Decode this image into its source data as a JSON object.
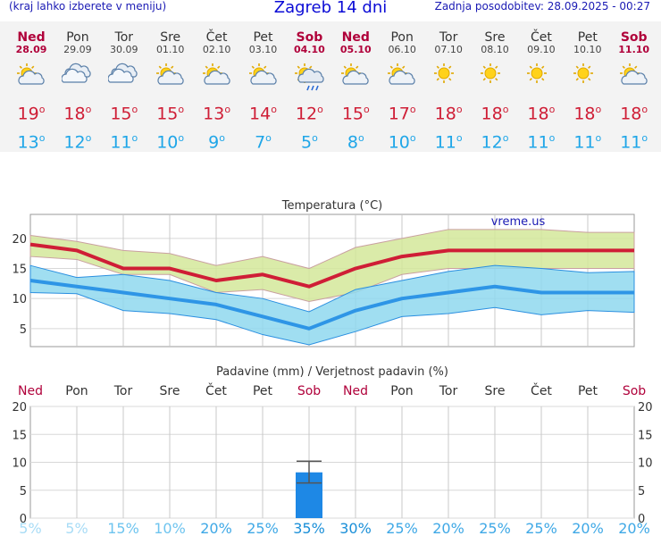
{
  "header": {
    "menu_hint": "(kraj lahko izberete v meniju)",
    "title": "Zagreb 14 dni",
    "updated": "Zadnja posodobitev: 28.09.2025 - 00:27"
  },
  "days": [
    {
      "name": "Ned",
      "date": "28.09",
      "weekend": true,
      "icon": "partly-cloudy-icon",
      "max": "19",
      "min": "13"
    },
    {
      "name": "Pon",
      "date": "29.09",
      "weekend": false,
      "icon": "cloudy-icon",
      "max": "18",
      "min": "12"
    },
    {
      "name": "Tor",
      "date": "30.09",
      "weekend": false,
      "icon": "cloudy-icon",
      "max": "15",
      "min": "11"
    },
    {
      "name": "Sre",
      "date": "01.10",
      "weekend": false,
      "icon": "partly-cloudy-icon",
      "max": "15",
      "min": "10"
    },
    {
      "name": "Čet",
      "date": "02.10",
      "weekend": false,
      "icon": "partly-cloudy-icon",
      "max": "13",
      "min": "9"
    },
    {
      "name": "Pet",
      "date": "03.10",
      "weekend": false,
      "icon": "partly-cloudy-icon",
      "max": "14",
      "min": "7"
    },
    {
      "name": "Sob",
      "date": "04.10",
      "weekend": true,
      "icon": "rain-sun-icon",
      "max": "12",
      "min": "5"
    },
    {
      "name": "Ned",
      "date": "05.10",
      "weekend": true,
      "icon": "partly-cloudy-icon",
      "max": "15",
      "min": "8"
    },
    {
      "name": "Pon",
      "date": "06.10",
      "weekend": false,
      "icon": "partly-cloudy-icon",
      "max": "17",
      "min": "10"
    },
    {
      "name": "Tor",
      "date": "07.10",
      "weekend": false,
      "icon": "sun-icon",
      "max": "18",
      "min": "11"
    },
    {
      "name": "Sre",
      "date": "08.10",
      "weekend": false,
      "icon": "sun-icon",
      "max": "18",
      "min": "12"
    },
    {
      "name": "Čet",
      "date": "09.10",
      "weekend": false,
      "icon": "sun-icon",
      "max": "18",
      "min": "11"
    },
    {
      "name": "Pet",
      "date": "10.10",
      "weekend": false,
      "icon": "sun-icon",
      "max": "18",
      "min": "11"
    },
    {
      "name": "Sob",
      "date": "11.10",
      "weekend": true,
      "icon": "partly-cloudy-icon",
      "max": "18",
      "min": "11"
    }
  ],
  "degree_symbol": "o",
  "colors": {
    "max": "#cf1e36",
    "min": "#1fa6e8",
    "weekend": "#b0003a",
    "max_band": "#d4e89a",
    "min_band": "#8fd8ee",
    "bar": "#1e88e5"
  },
  "chart_data": [
    {
      "type": "line",
      "title": "Temperatura (°C)",
      "watermark": "vreme.us",
      "x": [
        0,
        1,
        2,
        3,
        4,
        5,
        6,
        7,
        8,
        9,
        10,
        11,
        12,
        13
      ],
      "ylim": [
        2,
        24
      ],
      "yticks": [
        5,
        10,
        15,
        20
      ],
      "grid": true,
      "series": [
        {
          "name": "max",
          "values": [
            19,
            18,
            15,
            15,
            13,
            14,
            12,
            15,
            17,
            18,
            18,
            18,
            18,
            18
          ]
        },
        {
          "name": "min",
          "values": [
            13,
            12,
            11,
            10,
            9,
            7,
            5,
            8,
            10,
            11,
            12,
            11,
            11,
            11
          ]
        }
      ],
      "max_band_upper": [
        20.5,
        19.5,
        18,
        17.5,
        15.5,
        17,
        15,
        18.5,
        20,
        21.5,
        21.5,
        21.5,
        21,
        21
      ],
      "max_band_lower": [
        17,
        16.5,
        14,
        14,
        11,
        11.5,
        9.5,
        11,
        14,
        15,
        15,
        15,
        15,
        15
      ],
      "min_band_upper": [
        15.5,
        13.5,
        14,
        13,
        11,
        10,
        7.8,
        11.5,
        13,
        14.5,
        15.5,
        15,
        14.3,
        14.5
      ],
      "min_band_lower": [
        11,
        10.8,
        8,
        7.5,
        6.5,
        4,
        2.3,
        4.5,
        7,
        7.5,
        8.5,
        7.3,
        8,
        7.7
      ]
    },
    {
      "type": "bar",
      "title": "Padavine (mm) / Verjetnost padavin (%)",
      "categories": [
        "Ned",
        "Pon",
        "Tor",
        "Sre",
        "Čet",
        "Pet",
        "Sob",
        "Ned",
        "Pon",
        "Tor",
        "Sre",
        "Čet",
        "Pet",
        "Sob"
      ],
      "weekend": [
        true,
        false,
        false,
        false,
        false,
        false,
        true,
        true,
        false,
        false,
        false,
        false,
        false,
        true
      ],
      "values": [
        0,
        0,
        0,
        0,
        0,
        0,
        8.2,
        0,
        0,
        0,
        0,
        0,
        0,
        0
      ],
      "error_low": [
        0,
        0,
        0,
        0,
        0,
        0,
        6.3,
        0,
        0,
        0,
        0,
        0,
        0,
        0
      ],
      "error_high": [
        0,
        0,
        0,
        0,
        0,
        0,
        10.2,
        0,
        0,
        0,
        0,
        0,
        0,
        0
      ],
      "ylim": [
        0,
        20
      ],
      "yticks": [
        0,
        5,
        10,
        15,
        20
      ],
      "probability": [
        "5%",
        "5%",
        "15%",
        "10%",
        "20%",
        "25%",
        "35%",
        "30%",
        "25%",
        "20%",
        "25%",
        "25%",
        "20%",
        "20%"
      ],
      "probability_values": [
        5,
        5,
        15,
        10,
        20,
        25,
        35,
        30,
        25,
        20,
        25,
        25,
        20,
        20
      ]
    }
  ]
}
